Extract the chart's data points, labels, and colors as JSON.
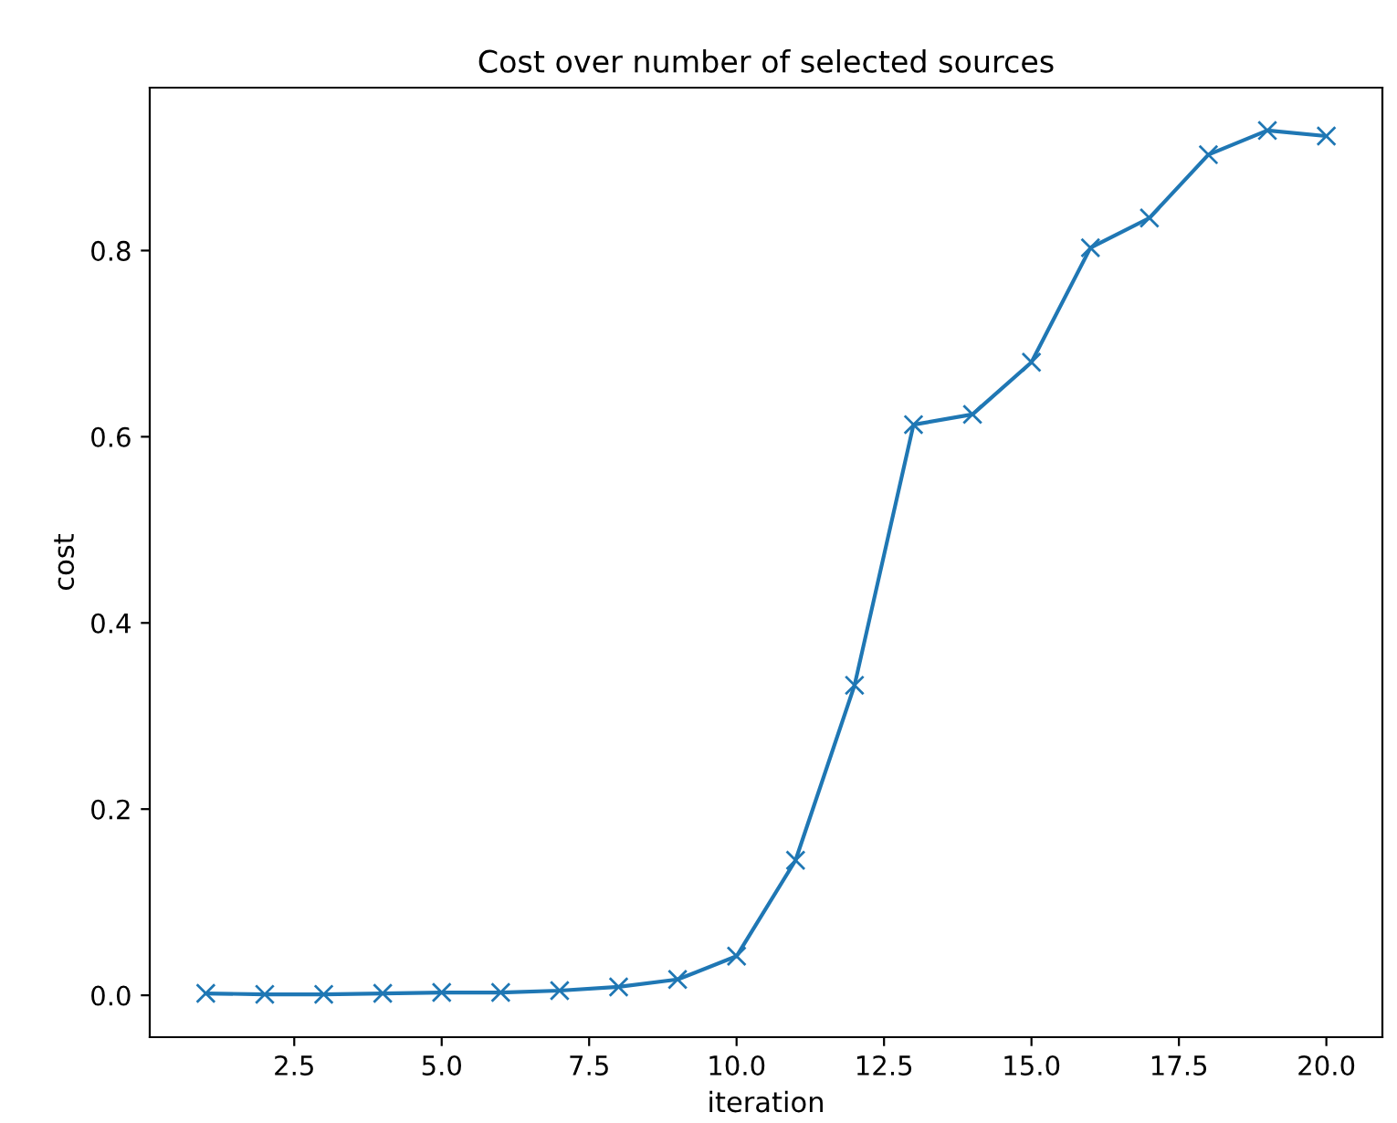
{
  "chart_data": {
    "type": "line",
    "title": "Cost over number of selected sources",
    "xlabel": "iteration",
    "ylabel": "cost",
    "x": [
      1,
      2,
      3,
      4,
      5,
      6,
      7,
      8,
      9,
      10,
      11,
      12,
      13,
      14,
      15,
      16,
      17,
      18,
      19,
      20
    ],
    "series": [
      {
        "color": "#1f77b4",
        "values": [
          0.002,
          0.001,
          0.001,
          0.002,
          0.003,
          0.003,
          0.005,
          0.009,
          0.017,
          0.042,
          0.145,
          0.333,
          0.613,
          0.624,
          0.68,
          0.803,
          0.835,
          0.903,
          0.929,
          0.923
        ]
      }
    ],
    "xlim": [
      0.05,
      20.95
    ],
    "ylim": [
      -0.045,
      0.975
    ],
    "xticks": [
      {
        "value": 2.5,
        "label": "2.5"
      },
      {
        "value": 5,
        "label": "5.0"
      },
      {
        "value": 7.5,
        "label": "7.5"
      },
      {
        "value": 10,
        "label": "10.0"
      },
      {
        "value": 12.5,
        "label": "12.5"
      },
      {
        "value": 15,
        "label": "15.0"
      },
      {
        "value": 17.5,
        "label": "17.5"
      },
      {
        "value": 20,
        "label": "20.0"
      }
    ],
    "yticks": [
      {
        "value": 0,
        "label": "0.0"
      },
      {
        "value": 0.2,
        "label": "0.2"
      },
      {
        "value": 0.4,
        "label": "0.4"
      },
      {
        "value": 0.6,
        "label": "0.6"
      },
      {
        "value": 0.8,
        "label": "0.8"
      }
    ],
    "marker": "cross",
    "line_style": "solid",
    "grid": false
  }
}
